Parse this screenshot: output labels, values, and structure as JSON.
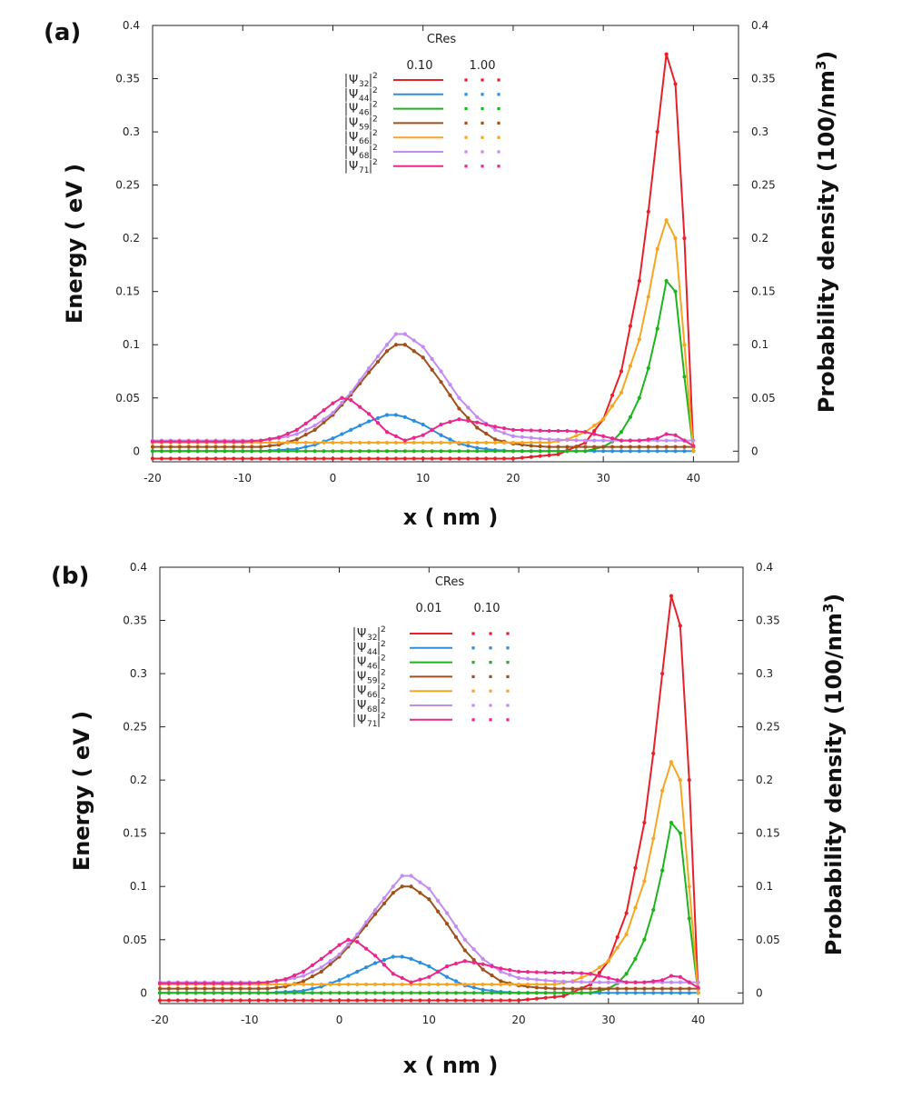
{
  "chart_data": [
    {
      "panel_label": "(a)",
      "type": "line",
      "xlabel": "x ( nm )",
      "ylabel_left": "Energy ( eV )",
      "ylabel_right": "Probability density (100/nm",
      "ylabel_right_sup": "3",
      "ylabel_right_close": ")",
      "xlim": [
        -20,
        45
      ],
      "ylim": [
        -0.01,
        0.4
      ],
      "xticks": [
        "-20",
        "-10",
        "0",
        "10",
        "20",
        "30",
        "40"
      ],
      "yticks": [
        "0",
        "0.05",
        "0.1",
        "0.15",
        "0.2",
        "0.25",
        "0.3",
        "0.35",
        "0.4"
      ],
      "grid": false,
      "legend": {
        "placement": "top-center",
        "title": "CRes",
        "col1": "0.10",
        "col2": "1.00",
        "entries": [
          {
            "sub": "32",
            "color": "#e8202a"
          },
          {
            "sub": "44",
            "color": "#2a8fe0"
          },
          {
            "sub": "46",
            "color": "#1eb41e"
          },
          {
            "sub": "59",
            "color": "#a0501a"
          },
          {
            "sub": "66",
            "color": "#f5a623"
          },
          {
            "sub": "68",
            "color": "#c28cf0"
          },
          {
            "sub": "71",
            "color": "#e8288c"
          }
        ]
      },
      "series": [
        {
          "key": "32",
          "color": "#e8202a",
          "base": -0.007,
          "x": [
            -20,
            20,
            25,
            28,
            30,
            32,
            34,
            35,
            36,
            37,
            38,
            39,
            40
          ],
          "y": [
            -0.007,
            -0.007,
            -0.003,
            0.008,
            0.03,
            0.075,
            0.16,
            0.225,
            0.3,
            0.373,
            0.345,
            0.2,
            0.0
          ]
        },
        {
          "key": "44",
          "color": "#2a8fe0",
          "base": 0.0,
          "x": [
            -20,
            -8,
            -4,
            -2,
            0,
            2,
            4,
            6,
            7,
            8,
            10,
            12,
            14,
            16,
            18,
            20,
            40
          ],
          "y": [
            0.0,
            0.0,
            0.002,
            0.006,
            0.012,
            0.02,
            0.028,
            0.034,
            0.034,
            0.032,
            0.025,
            0.015,
            0.007,
            0.003,
            0.001,
            0.0,
            0.0
          ]
        },
        {
          "key": "46",
          "color": "#1eb41e",
          "base": 0.0,
          "x": [
            -20,
            28,
            30,
            31,
            32,
            33,
            34,
            35,
            36,
            37,
            38,
            39,
            40
          ],
          "y": [
            0.0,
            0.0,
            0.004,
            0.009,
            0.018,
            0.032,
            0.05,
            0.078,
            0.115,
            0.16,
            0.15,
            0.07,
            0.0
          ]
        },
        {
          "key": "59",
          "color": "#a0501a",
          "base": 0.004,
          "x": [
            -20,
            -8,
            -6,
            -4,
            -2,
            0,
            2,
            4,
            6,
            7,
            8,
            10,
            12,
            14,
            16,
            18,
            20,
            22,
            24,
            40
          ],
          "y": [
            0.004,
            0.004,
            0.006,
            0.011,
            0.02,
            0.034,
            0.053,
            0.074,
            0.094,
            0.1,
            0.1,
            0.088,
            0.065,
            0.04,
            0.022,
            0.011,
            0.007,
            0.005,
            0.004,
            0.004
          ]
        },
        {
          "key": "66",
          "color": "#f5a623",
          "base": 0.008,
          "x": [
            -20,
            24,
            26,
            28,
            30,
            32,
            34,
            35,
            36,
            37,
            38,
            39,
            40
          ],
          "y": [
            0.008,
            0.008,
            0.011,
            0.018,
            0.03,
            0.055,
            0.105,
            0.145,
            0.19,
            0.217,
            0.2,
            0.1,
            0.0
          ]
        },
        {
          "key": "68",
          "color": "#c28cf0",
          "base": 0.01,
          "x": [
            -20,
            -8,
            -6,
            -4,
            -2,
            0,
            2,
            4,
            6,
            7,
            8,
            10,
            12,
            14,
            16,
            18,
            20,
            24,
            28,
            32,
            36,
            38,
            40
          ],
          "y": [
            0.01,
            0.01,
            0.012,
            0.016,
            0.024,
            0.036,
            0.055,
            0.078,
            0.1,
            0.11,
            0.11,
            0.098,
            0.075,
            0.05,
            0.032,
            0.02,
            0.014,
            0.011,
            0.01,
            0.01,
            0.01,
            0.01,
            0.01
          ]
        },
        {
          "key": "71",
          "color": "#e8288c",
          "base": 0.009,
          "x": [
            -20,
            -10,
            -8,
            -6,
            -4,
            -2,
            0,
            1,
            2,
            4,
            6,
            8,
            10,
            12,
            14,
            16,
            18,
            20,
            24,
            26,
            28,
            30,
            32,
            34,
            36,
            37,
            38,
            40
          ],
          "y": [
            0.009,
            0.009,
            0.01,
            0.013,
            0.02,
            0.032,
            0.045,
            0.05,
            0.048,
            0.035,
            0.018,
            0.01,
            0.015,
            0.025,
            0.03,
            0.027,
            0.023,
            0.02,
            0.019,
            0.019,
            0.018,
            0.014,
            0.01,
            0.01,
            0.012,
            0.016,
            0.015,
            0.005
          ]
        }
      ]
    },
    {
      "panel_label": "(b)",
      "type": "line",
      "xlabel": "x ( nm )",
      "ylabel_left": "Energy ( eV )",
      "ylabel_right": "Probability density (100/nm",
      "ylabel_right_sup": "3",
      "ylabel_right_close": ")",
      "xlim": [
        -20,
        45
      ],
      "ylim": [
        -0.01,
        0.4
      ],
      "xticks": [
        "-20",
        "-10",
        "0",
        "10",
        "20",
        "30",
        "40"
      ],
      "yticks": [
        "0",
        "0.05",
        "0.1",
        "0.15",
        "0.2",
        "0.25",
        "0.3",
        "0.35",
        "0.4"
      ],
      "grid": false,
      "legend": {
        "placement": "top-center",
        "title": "CRes",
        "col1": "0.01",
        "col2": "0.10",
        "entries": [
          {
            "sub": "32",
            "color": "#e8202a"
          },
          {
            "sub": "44",
            "color": "#2a8fe0"
          },
          {
            "sub": "46",
            "color": "#1eb41e"
          },
          {
            "sub": "59",
            "color": "#a0501a"
          },
          {
            "sub": "66",
            "color": "#f5a623"
          },
          {
            "sub": "68",
            "color": "#c28cf0"
          },
          {
            "sub": "71",
            "color": "#e8288c"
          }
        ]
      },
      "series": [
        {
          "key": "32",
          "color": "#e8202a",
          "base": -0.007,
          "x": [
            -20,
            20,
            25,
            28,
            30,
            32,
            34,
            35,
            36,
            37,
            38,
            39,
            40
          ],
          "y": [
            -0.007,
            -0.007,
            -0.003,
            0.008,
            0.03,
            0.075,
            0.16,
            0.225,
            0.3,
            0.373,
            0.345,
            0.2,
            0.0
          ]
        },
        {
          "key": "44",
          "color": "#2a8fe0",
          "base": 0.0,
          "x": [
            -20,
            -8,
            -4,
            -2,
            0,
            2,
            4,
            6,
            7,
            8,
            10,
            12,
            14,
            16,
            18,
            20,
            40
          ],
          "y": [
            0.0,
            0.0,
            0.002,
            0.006,
            0.012,
            0.02,
            0.028,
            0.034,
            0.034,
            0.032,
            0.025,
            0.015,
            0.007,
            0.003,
            0.001,
            0.0,
            0.0
          ]
        },
        {
          "key": "46",
          "color": "#1eb41e",
          "base": 0.0,
          "x": [
            -20,
            28,
            30,
            31,
            32,
            33,
            34,
            35,
            36,
            37,
            38,
            39,
            40
          ],
          "y": [
            0.0,
            0.0,
            0.004,
            0.009,
            0.018,
            0.032,
            0.05,
            0.078,
            0.115,
            0.16,
            0.15,
            0.07,
            0.0
          ]
        },
        {
          "key": "59",
          "color": "#a0501a",
          "base": 0.004,
          "x": [
            -20,
            -8,
            -6,
            -4,
            -2,
            0,
            2,
            4,
            6,
            7,
            8,
            10,
            12,
            14,
            16,
            18,
            20,
            22,
            24,
            40
          ],
          "y": [
            0.004,
            0.004,
            0.006,
            0.011,
            0.02,
            0.034,
            0.053,
            0.074,
            0.094,
            0.1,
            0.1,
            0.088,
            0.065,
            0.04,
            0.022,
            0.011,
            0.007,
            0.005,
            0.004,
            0.004
          ]
        },
        {
          "key": "66",
          "color": "#f5a623",
          "base": 0.008,
          "x": [
            -20,
            24,
            26,
            28,
            30,
            32,
            34,
            35,
            36,
            37,
            38,
            39,
            40
          ],
          "y": [
            0.008,
            0.008,
            0.011,
            0.018,
            0.03,
            0.055,
            0.105,
            0.145,
            0.19,
            0.217,
            0.2,
            0.1,
            0.0
          ]
        },
        {
          "key": "68",
          "color": "#c28cf0",
          "base": 0.01,
          "x": [
            -20,
            -8,
            -6,
            -4,
            -2,
            0,
            2,
            4,
            6,
            7,
            8,
            10,
            12,
            14,
            16,
            18,
            20,
            24,
            28,
            32,
            36,
            38,
            40
          ],
          "y": [
            0.01,
            0.01,
            0.012,
            0.016,
            0.024,
            0.036,
            0.055,
            0.078,
            0.1,
            0.11,
            0.11,
            0.098,
            0.075,
            0.05,
            0.032,
            0.02,
            0.014,
            0.011,
            0.01,
            0.01,
            0.01,
            0.01,
            0.01
          ]
        },
        {
          "key": "71",
          "color": "#e8288c",
          "base": 0.009,
          "x": [
            -20,
            -10,
            -8,
            -6,
            -4,
            -2,
            0,
            1,
            2,
            4,
            6,
            8,
            10,
            12,
            14,
            16,
            18,
            20,
            24,
            26,
            28,
            30,
            32,
            34,
            36,
            37,
            38,
            40
          ],
          "y": [
            0.009,
            0.009,
            0.01,
            0.013,
            0.02,
            0.032,
            0.045,
            0.05,
            0.048,
            0.035,
            0.018,
            0.01,
            0.015,
            0.025,
            0.03,
            0.027,
            0.023,
            0.02,
            0.019,
            0.019,
            0.018,
            0.014,
            0.01,
            0.01,
            0.012,
            0.016,
            0.015,
            0.005
          ]
        }
      ]
    }
  ]
}
